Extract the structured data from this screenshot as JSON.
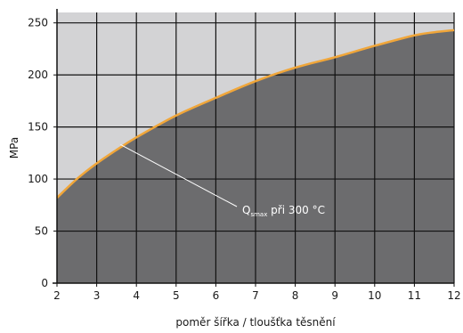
{
  "chart_data": {
    "type": "area",
    "xlabel": "poměr šířka / tloušťka těsnění",
    "ylabel": "MPa",
    "xlim": [
      2,
      12
    ],
    "ylim": [
      0,
      260
    ],
    "xticks": [
      2,
      3,
      4,
      5,
      6,
      7,
      8,
      9,
      10,
      11,
      12
    ],
    "yticks": [
      0,
      50,
      100,
      150,
      200,
      250
    ],
    "grid": true,
    "series": [
      {
        "name": "Qsmax při 300 °C",
        "x": [
          2,
          2.5,
          3,
          3.5,
          4,
          5,
          6,
          7,
          8,
          9,
          10,
          11,
          11.5,
          12
        ],
        "y": [
          82,
          100,
          115,
          128,
          140,
          161,
          178,
          194,
          207,
          217,
          228,
          238,
          241,
          243
        ]
      }
    ],
    "annotation": {
      "main": "Q",
      "sub": "smax",
      "rest": " při 300 °C",
      "point_x": 3.6,
      "point_y": 133
    },
    "colors": {
      "upper_fill": "#d3d3d5",
      "area_fill": "#6c6c6e",
      "curve": "#f0a63a",
      "grid": "#111111",
      "annotation_line": "#ffffff"
    }
  }
}
